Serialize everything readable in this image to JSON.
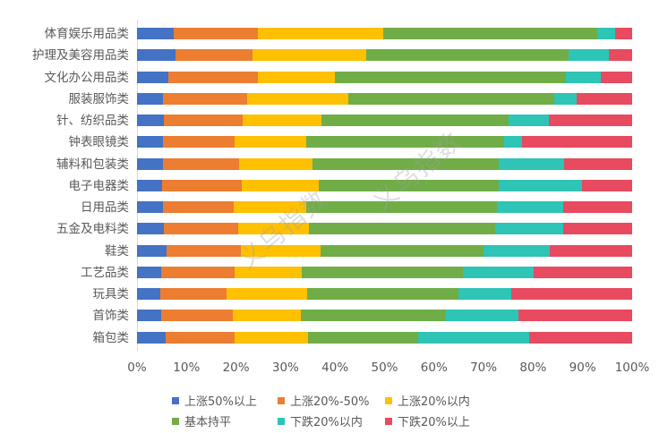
{
  "chart_data": {
    "type": "bar",
    "orientation": "horizontal",
    "stacked": "percent",
    "title": "",
    "xlabel": "",
    "ylabel": "",
    "xlim": [
      0,
      100
    ],
    "x_ticks": [
      "0%",
      "10%",
      "20%",
      "30%",
      "40%",
      "50%",
      "60%",
      "70%",
      "80%",
      "90%",
      "100%"
    ],
    "grid": false,
    "legend_position": "bottom",
    "categories": [
      "体育娱乐用品类",
      "护理及美容用品类",
      "文化办公用品类",
      "服装服饰类",
      "针、纺织品类",
      "钟表眼镜类",
      "辅料和包装类",
      "电子电器类",
      "日用品类",
      "五金及电料类",
      "鞋类",
      "工艺品类",
      "玩具类",
      "首饰类",
      "箱包类"
    ],
    "series": [
      {
        "name": "上涨50%以上",
        "color": "#4472C4",
        "values": [
          7.4,
          7.8,
          6.4,
          5.3,
          5.5,
          5.3,
          5.2,
          5.0,
          5.2,
          5.4,
          5.9,
          4.9,
          4.7,
          4.9,
          5.7
        ]
      },
      {
        "name": "上涨20%-50%",
        "color": "#ED7D31",
        "values": [
          17.0,
          15.6,
          18.1,
          16.9,
          15.8,
          14.4,
          15.5,
          16.2,
          14.3,
          15.0,
          15.1,
          14.9,
          13.3,
          14.4,
          14.1
        ]
      },
      {
        "name": "上涨20%以内",
        "color": "#FFC000",
        "values": [
          25.3,
          22.9,
          15.5,
          20.5,
          16.0,
          14.5,
          14.8,
          15.5,
          14.6,
          14.3,
          16.1,
          13.5,
          16.4,
          13.8,
          14.8
        ]
      },
      {
        "name": "基本持平",
        "color": "#70AD47",
        "values": [
          43.2,
          40.9,
          46.7,
          41.6,
          37.8,
          40.0,
          37.5,
          36.3,
          38.6,
          37.7,
          32.9,
          32.6,
          30.5,
          29.3,
          22.1
        ]
      },
      {
        "name": "下跌20%以内",
        "color": "#2EC4B6",
        "values": [
          3.6,
          8.1,
          7.0,
          4.5,
          8.0,
          3.6,
          13.3,
          16.9,
          13.4,
          13.7,
          13.4,
          14.3,
          10.7,
          14.7,
          22.5
        ]
      },
      {
        "name": "下跌20%以上",
        "color": "#E84A5F",
        "values": [
          3.5,
          4.7,
          6.3,
          11.2,
          16.9,
          22.2,
          13.7,
          10.1,
          13.9,
          13.9,
          16.6,
          19.8,
          24.4,
          22.9,
          20.8
        ]
      }
    ],
    "annotations": [
      "义乌指数",
      "义乌指数"
    ]
  },
  "legend": {
    "items": [
      {
        "label": "上涨50%以上",
        "color": "#4472C4"
      },
      {
        "label": "上涨20%-50%",
        "color": "#ED7D31"
      },
      {
        "label": "上涨20%以内",
        "color": "#FFC000"
      },
      {
        "label": "基本持平",
        "color": "#70AD47"
      },
      {
        "label": "下跌20%以内",
        "color": "#2EC4B6"
      },
      {
        "label": "下跌20%以上",
        "color": "#E84A5F"
      }
    ]
  },
  "watermark": {
    "text": "义乌指数"
  }
}
